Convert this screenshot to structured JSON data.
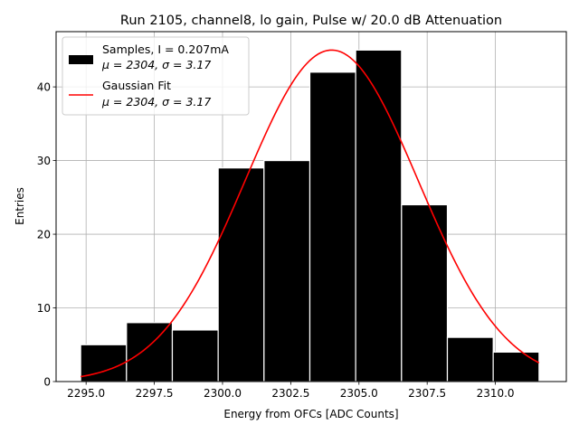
{
  "chart_data": {
    "type": "bar",
    "title": "Run 2105, channel8, lo gain, Pulse w/ 20.0 dB Attenuation",
    "xlabel": "Energy from OFCs [ADC Counts]",
    "ylabel": "Entries",
    "xlim": [
      2293.9,
      2312.6
    ],
    "ylim": [
      0,
      47.5
    ],
    "xticks": [
      2295.0,
      2297.5,
      2300.0,
      2302.5,
      2305.0,
      2307.5,
      2310.0
    ],
    "xtick_labels": [
      "2295.0",
      "2297.5",
      "2300.0",
      "2302.5",
      "2305.0",
      "2307.5",
      "2310.0"
    ],
    "yticks": [
      0,
      10,
      20,
      30,
      40
    ],
    "ytick_labels": [
      "0",
      "10",
      "20",
      "30",
      "40"
    ],
    "grid": true,
    "legend_position": "top-left",
    "bin_edges": [
      2294.8,
      2296.48,
      2298.16,
      2299.84,
      2301.52,
      2303.2,
      2304.88,
      2306.56,
      2308.24,
      2309.92,
      2311.6
    ],
    "series": [
      {
        "name": "Samples, I = 0.207mA",
        "stats": "μ = 2304, σ = 3.17",
        "kind": "histogram",
        "color": "#000000",
        "values": [
          5,
          8,
          7,
          29,
          30,
          42,
          45,
          24,
          6,
          4
        ]
      },
      {
        "name": "Gaussian Fit",
        "stats": "μ = 2304, σ = 3.17",
        "kind": "line",
        "color": "#ff0000",
        "mu": 2304.0,
        "sigma": 3.17,
        "amplitude": 45.0,
        "x_range": [
          2294.8,
          2311.6
        ]
      }
    ]
  }
}
